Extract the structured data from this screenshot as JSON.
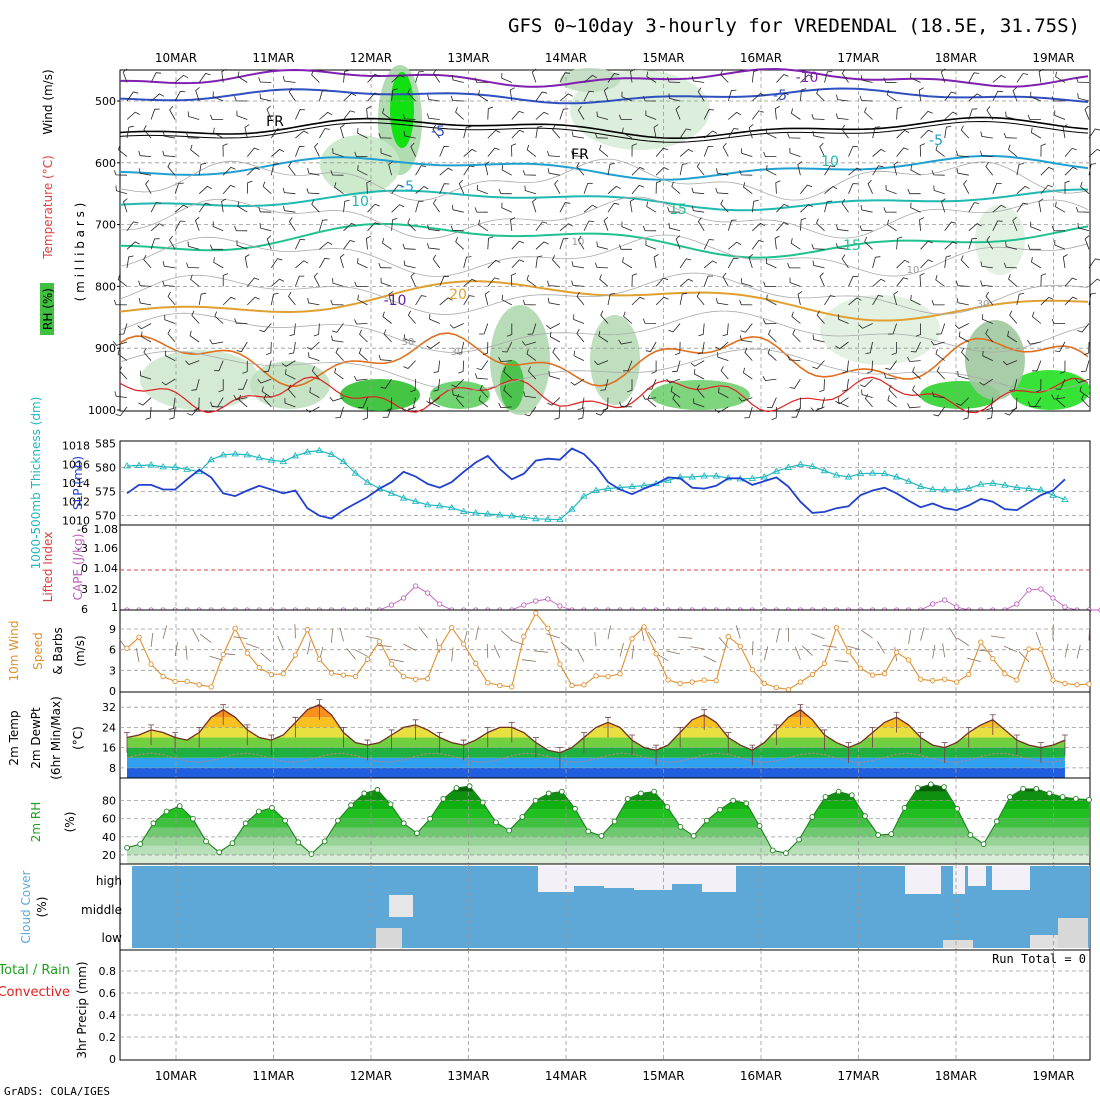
{
  "title": "GFS 0~10day 3-hourly for VREDENDAL (18.5E, 31.75S)",
  "credit": "GrADS: COLA/IGES",
  "colors": {
    "rh_green": "#00e000",
    "temperature": "#e04040",
    "wind": "#3050c0",
    "thickness": "#20b8c0",
    "slp": "#2040d0",
    "lifted_index": "#e04040",
    "cape": "#c060c0",
    "wind10m": "#e09030",
    "rh2m": "#20a020",
    "cloud": "#5ea8d8",
    "cloud_white": "#f4f0f8",
    "precip_total": "#20a020",
    "precip_conv": "#e02020"
  },
  "dates": [
    "10MAR",
    "11MAR",
    "12MAR",
    "13MAR",
    "14MAR",
    "15MAR",
    "16MAR",
    "17MAR",
    "18MAR",
    "19MAR"
  ],
  "chart_data": [
    {
      "type": "contour",
      "panel": "upper-air",
      "ylabels": {
        "rh": "RH (%)",
        "temperature": "Temperature (°C)",
        "wind": "Wind (m/s)",
        "pressure": "( m i l l i b a r s )"
      },
      "yticks": [
        "500",
        "600",
        "700",
        "800",
        "900",
        "1000"
      ],
      "contour_labels": [
        {
          "text": "-10",
          "color": "#8020b0"
        },
        {
          "text": "-5",
          "color": "#3050c0"
        },
        {
          "text": "-5",
          "color": "#3050c0"
        },
        {
          "text": "FR",
          "color": "#000000"
        },
        {
          "text": "FR",
          "color": "#000000"
        },
        {
          "text": "-5",
          "color": "#20a0d0"
        },
        {
          "text": "-5",
          "color": "#20a0d0"
        },
        {
          "text": "10",
          "color": "#20b8b0"
        },
        {
          "text": "10",
          "color": "#20b8b0"
        },
        {
          "text": "15",
          "color": "#20c090"
        },
        {
          "text": "15",
          "color": "#20c090"
        },
        {
          "text": "20",
          "color": "#e0a030"
        },
        {
          "text": "-10",
          "color": "#6020a0"
        },
        {
          "text": "10",
          "color": "#999999"
        },
        {
          "text": "30",
          "color": "#999999"
        },
        {
          "text": "50",
          "color": "#999999"
        },
        {
          "text": "30",
          "color": "#999999"
        },
        {
          "text": "10",
          "color": "#999999"
        }
      ]
    },
    {
      "type": "line",
      "panel": "thickness-slp",
      "ylabels": {
        "thickness": "1000-500mb Thickness (dm)",
        "slp": "SLP (mb)"
      },
      "left_ticks": [
        "585",
        "580",
        "575",
        "570"
      ],
      "right_ticks": [
        "1018",
        "1016",
        "1014",
        "1012",
        "1010"
      ],
      "series": [
        {
          "name": "1000-500mb Thickness (dm)",
          "values": [
            580.3,
            580.4,
            580.5,
            580.1,
            580.0,
            579.6,
            579.1,
            581.6,
            582.6,
            582.8,
            582.6,
            582.0,
            581.5,
            581.2,
            582.4,
            583.2,
            583.5,
            582.7,
            581.2,
            578.8,
            576.9,
            575.6,
            574.6,
            573.6,
            572.9,
            572.2,
            572.0,
            571.6,
            570.8,
            570.5,
            570.3,
            570.1,
            569.9,
            569.6,
            569.3,
            569.2,
            569.1,
            571.3,
            574.0,
            575.2,
            575.6,
            575.8,
            576.0,
            576.2,
            576.6,
            577.3,
            578.0,
            578.0,
            578.2,
            578.2,
            577.8,
            577.6,
            577.7,
            578.0,
            579.2,
            580.0,
            580.6,
            580.2,
            579.3,
            578.4,
            578.0,
            578.7,
            578.8,
            578.7,
            578.0,
            577.1,
            576.0,
            575.4,
            575.3,
            575.3,
            575.6,
            576.5,
            576.7,
            576.3,
            575.8,
            575.6,
            575.3,
            574.2,
            573.3
          ]
        },
        {
          "name": "SLP (mb)",
          "values": [
            1012.9,
            1013.8,
            1013.8,
            1013.3,
            1013.3,
            1014.4,
            1015.4,
            1014.6,
            1012.9,
            1012.6,
            1013.2,
            1013.7,
            1013.3,
            1012.9,
            1013.2,
            1011.3,
            1010.5,
            1010.2,
            1011.1,
            1011.8,
            1012.5,
            1013.4,
            1014.1,
            1015.2,
            1014.7,
            1013.9,
            1013.5,
            1014.1,
            1015.2,
            1016.2,
            1016.9,
            1015.5,
            1014.4,
            1015.0,
            1016.4,
            1016.6,
            1016.5,
            1017.7,
            1017.1,
            1015.8,
            1014.1,
            1013.3,
            1012.8,
            1013.4,
            1013.9,
            1014.6,
            1014.5,
            1013.5,
            1013.4,
            1013.7,
            1014.5,
            1014.5,
            1013.8,
            1014.2,
            1014.6,
            1013.6,
            1012.0,
            1010.8,
            1010.9,
            1011.3,
            1011.5,
            1012.7,
            1013.2,
            1013.5,
            1012.9,
            1012.1,
            1011.4,
            1011.8,
            1011.3,
            1011.1,
            1011.6,
            1012.3,
            1012.0,
            1011.2,
            1011.1,
            1011.9,
            1012.7,
            1013.2,
            1014.4
          ]
        }
      ]
    },
    {
      "type": "line",
      "panel": "stability",
      "ylabels": {
        "lifted_index": "Lifted Index",
        "cape": "CAPE (J/kg)"
      },
      "left_ticks": [
        "-6",
        "-3",
        "0",
        "3",
        "6"
      ],
      "right_ticks": [
        "1.08",
        "1.06",
        "1.04",
        "1.02",
        "1"
      ],
      "series": [
        {
          "name": "CAPE (J/kg)",
          "values": [
            1,
            1,
            1,
            1,
            1,
            1,
            1,
            1,
            1,
            1,
            1,
            1,
            1,
            1,
            1,
            1,
            1,
            1,
            1,
            1,
            1,
            1,
            1.005,
            1.012,
            1.024,
            1.017,
            1.006,
            1,
            1,
            1,
            1,
            1,
            1,
            1.005,
            1.009,
            1.011,
            1.004,
            1,
            1,
            1,
            1,
            1,
            1,
            1,
            1,
            1,
            1,
            1,
            1,
            1,
            1,
            1,
            1,
            1,
            1,
            1,
            1,
            1,
            1,
            1,
            1,
            1,
            1,
            1,
            1,
            1,
            1,
            1.006,
            1.01,
            1.003,
            1,
            1,
            1,
            1,
            1.006,
            1.02,
            1.021,
            1.012,
            1.003,
            1,
            1,
            1,
            1
          ]
        }
      ]
    },
    {
      "type": "line",
      "panel": "wind10m",
      "ylabels": {
        "title": "10m Wind",
        "speed": "Speed",
        "barbs": "& Barbs",
        "units": "(m/s)"
      },
      "yticks": [
        "9",
        "6",
        "3",
        "0"
      ],
      "series": [
        {
          "name": "Speed",
          "values": [
            6.2,
            7.8,
            3.9,
            2.1,
            1.4,
            1.4,
            0.9,
            0.6,
            5.3,
            9.1,
            5.5,
            3.4,
            2.4,
            2.5,
            5.2,
            8.9,
            4.6,
            2.6,
            2.3,
            2.1,
            4.6,
            7.2,
            3.9,
            2.1,
            1.7,
            1.8,
            6.3,
            9.2,
            6.8,
            4.0,
            1.2,
            0.8,
            0.6,
            7.9,
            11.3,
            9.1,
            3.9,
            0.8,
            0.9,
            2.2,
            2.1,
            2.5,
            7.6,
            9.3,
            5.4,
            1.6,
            1.1,
            1.3,
            1.6,
            1.5,
            7.9,
            6.5,
            3.1,
            1.1,
            0.5,
            0.2,
            1.3,
            2.4,
            4.0,
            9.2,
            5.7,
            3.3,
            2.3,
            2.5,
            5.6,
            4.5,
            1.7,
            1.5,
            1.7,
            1.3,
            2.4,
            7.1,
            4.7,
            2.5,
            1.6,
            6.1,
            6.1,
            1.6,
            1.1,
            0.9,
            1.0
          ]
        }
      ]
    },
    {
      "type": "area",
      "panel": "temp2m",
      "ylabels": {
        "title": "2m Temp",
        "dewpt": "2m DewPt",
        "minmax": "(6hr Min/Max)",
        "units": "(°C)"
      },
      "yticks": [
        "32",
        "24",
        "16",
        "8"
      ],
      "series": [
        {
          "name": "2m Temp",
          "values": [
            20,
            21,
            23,
            22,
            20,
            19,
            22,
            28,
            31,
            28,
            23,
            20,
            19,
            21,
            26,
            31,
            33,
            29,
            22,
            18,
            17,
            18,
            21,
            24,
            25,
            23,
            20,
            18,
            17,
            19,
            22,
            24,
            24,
            22,
            18,
            15,
            14,
            16,
            20,
            24,
            26,
            24,
            19,
            16,
            15,
            17,
            22,
            27,
            29,
            26,
            20,
            17,
            15,
            18,
            23,
            28,
            31,
            27,
            21,
            18,
            16,
            18,
            22,
            26,
            28,
            25,
            20,
            17,
            16,
            18,
            22,
            25,
            27,
            23,
            19,
            17,
            16,
            17,
            19
          ]
        }
      ]
    },
    {
      "type": "area",
      "panel": "rh2m",
      "ylabels": {
        "title": "2m RH",
        "units": "(%)"
      },
      "yticks": [
        "80",
        "60",
        "40",
        "20"
      ],
      "series": [
        {
          "name": "2m RH",
          "values": [
            28,
            32,
            55,
            68,
            74,
            60,
            35,
            23,
            33,
            55,
            68,
            72,
            58,
            34,
            21,
            35,
            58,
            75,
            88,
            92,
            76,
            55,
            44,
            60,
            82,
            94,
            96,
            78,
            56,
            47,
            62,
            80,
            88,
            90,
            71,
            46,
            41,
            57,
            82,
            88,
            90,
            73,
            51,
            41,
            58,
            70,
            80,
            77,
            52,
            25,
            22,
            37,
            62,
            84,
            90,
            86,
            63,
            42,
            43,
            72,
            94,
            98,
            95,
            71,
            42,
            32,
            57,
            84,
            93,
            93,
            88,
            84,
            82,
            81
          ]
        }
      ]
    },
    {
      "type": "heatmap",
      "panel": "cloud",
      "ylabels": {
        "title": "Cloud Cover",
        "units": "(%)"
      },
      "levels": [
        "high",
        "middle",
        "low"
      ]
    },
    {
      "type": "bar",
      "panel": "precip",
      "ylabels": {
        "total": "Total / Rain",
        "convective": "Convective",
        "units": "3hr Precip (mm)"
      },
      "yticks": [
        "0.8",
        "0.6",
        "0.4",
        "0.2",
        "0"
      ],
      "run_total": "Run Total = 0",
      "values": []
    }
  ]
}
